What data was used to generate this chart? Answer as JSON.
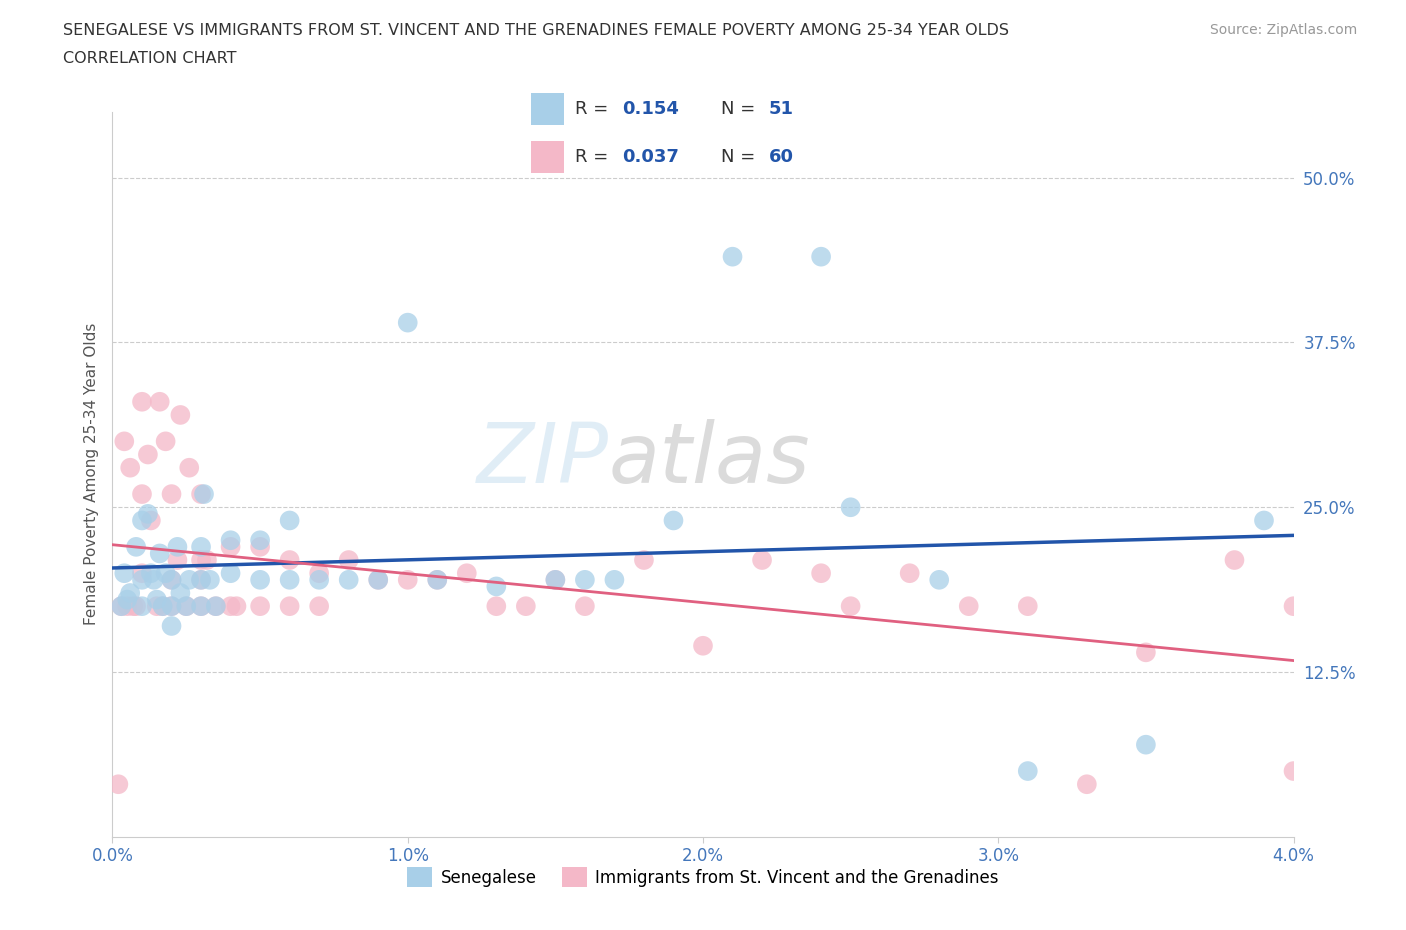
{
  "title_line1": "SENEGALESE VS IMMIGRANTS FROM ST. VINCENT AND THE GRENADINES FEMALE POVERTY AMONG 25-34 YEAR OLDS",
  "title_line2": "CORRELATION CHART",
  "source_text": "Source: ZipAtlas.com",
  "ylabel": "Female Poverty Among 25-34 Year Olds",
  "xlim": [
    0.0,
    0.04
  ],
  "ylim": [
    0.0,
    0.55
  ],
  "xticks": [
    0.0,
    0.01,
    0.02,
    0.03,
    0.04
  ],
  "xticklabels": [
    "0.0%",
    "1.0%",
    "2.0%",
    "3.0%",
    "4.0%"
  ],
  "yticks": [
    0.125,
    0.25,
    0.375,
    0.5
  ],
  "yticklabels": [
    "12.5%",
    "25.0%",
    "37.5%",
    "50.0%"
  ],
  "grid_color": "#cccccc",
  "watermark_zip": "ZIP",
  "watermark_atlas": "atlas",
  "blue_R": 0.154,
  "blue_N": 51,
  "pink_R": 0.037,
  "pink_N": 60,
  "blue_color": "#a8cfe8",
  "pink_color": "#f4b8c8",
  "blue_line_color": "#2255aa",
  "pink_line_color": "#e06080",
  "blue_x": [
    0.0003,
    0.0004,
    0.0005,
    0.0006,
    0.0008,
    0.001,
    0.001,
    0.001,
    0.0012,
    0.0013,
    0.0014,
    0.0015,
    0.0016,
    0.0017,
    0.0018,
    0.002,
    0.002,
    0.002,
    0.0022,
    0.0023,
    0.0025,
    0.0026,
    0.003,
    0.003,
    0.003,
    0.0031,
    0.0033,
    0.0035,
    0.004,
    0.004,
    0.005,
    0.005,
    0.006,
    0.006,
    0.007,
    0.008,
    0.009,
    0.01,
    0.011,
    0.013,
    0.015,
    0.016,
    0.017,
    0.019,
    0.021,
    0.024,
    0.025,
    0.028,
    0.031,
    0.035,
    0.039
  ],
  "blue_y": [
    0.175,
    0.2,
    0.18,
    0.185,
    0.22,
    0.24,
    0.195,
    0.175,
    0.245,
    0.2,
    0.195,
    0.18,
    0.215,
    0.175,
    0.2,
    0.195,
    0.175,
    0.16,
    0.22,
    0.185,
    0.175,
    0.195,
    0.22,
    0.195,
    0.175,
    0.26,
    0.195,
    0.175,
    0.225,
    0.2,
    0.225,
    0.195,
    0.24,
    0.195,
    0.195,
    0.195,
    0.195,
    0.39,
    0.195,
    0.19,
    0.195,
    0.195,
    0.195,
    0.24,
    0.44,
    0.44,
    0.25,
    0.195,
    0.05,
    0.07,
    0.24
  ],
  "pink_x": [
    0.0002,
    0.0003,
    0.0004,
    0.0005,
    0.0006,
    0.0007,
    0.0008,
    0.001,
    0.001,
    0.001,
    0.0012,
    0.0013,
    0.0015,
    0.0016,
    0.0017,
    0.0018,
    0.002,
    0.002,
    0.002,
    0.0022,
    0.0023,
    0.0025,
    0.0026,
    0.003,
    0.003,
    0.003,
    0.003,
    0.0032,
    0.0035,
    0.004,
    0.004,
    0.0042,
    0.005,
    0.005,
    0.006,
    0.006,
    0.007,
    0.007,
    0.008,
    0.009,
    0.01,
    0.011,
    0.012,
    0.013,
    0.014,
    0.015,
    0.016,
    0.018,
    0.02,
    0.022,
    0.024,
    0.025,
    0.027,
    0.029,
    0.031,
    0.033,
    0.035,
    0.038,
    0.04,
    0.04
  ],
  "pink_y": [
    0.04,
    0.175,
    0.3,
    0.175,
    0.28,
    0.175,
    0.175,
    0.33,
    0.26,
    0.2,
    0.29,
    0.24,
    0.175,
    0.33,
    0.175,
    0.3,
    0.26,
    0.195,
    0.175,
    0.21,
    0.32,
    0.175,
    0.28,
    0.26,
    0.21,
    0.195,
    0.175,
    0.21,
    0.175,
    0.22,
    0.175,
    0.175,
    0.22,
    0.175,
    0.175,
    0.21,
    0.2,
    0.175,
    0.21,
    0.195,
    0.195,
    0.195,
    0.2,
    0.175,
    0.175,
    0.195,
    0.175,
    0.21,
    0.145,
    0.21,
    0.2,
    0.175,
    0.2,
    0.175,
    0.175,
    0.04,
    0.14,
    0.21,
    0.05,
    0.175
  ],
  "legend_blue_label": "Senegalese",
  "legend_pink_label": "Immigrants from St. Vincent and the Grenadines",
  "background_color": "#ffffff"
}
